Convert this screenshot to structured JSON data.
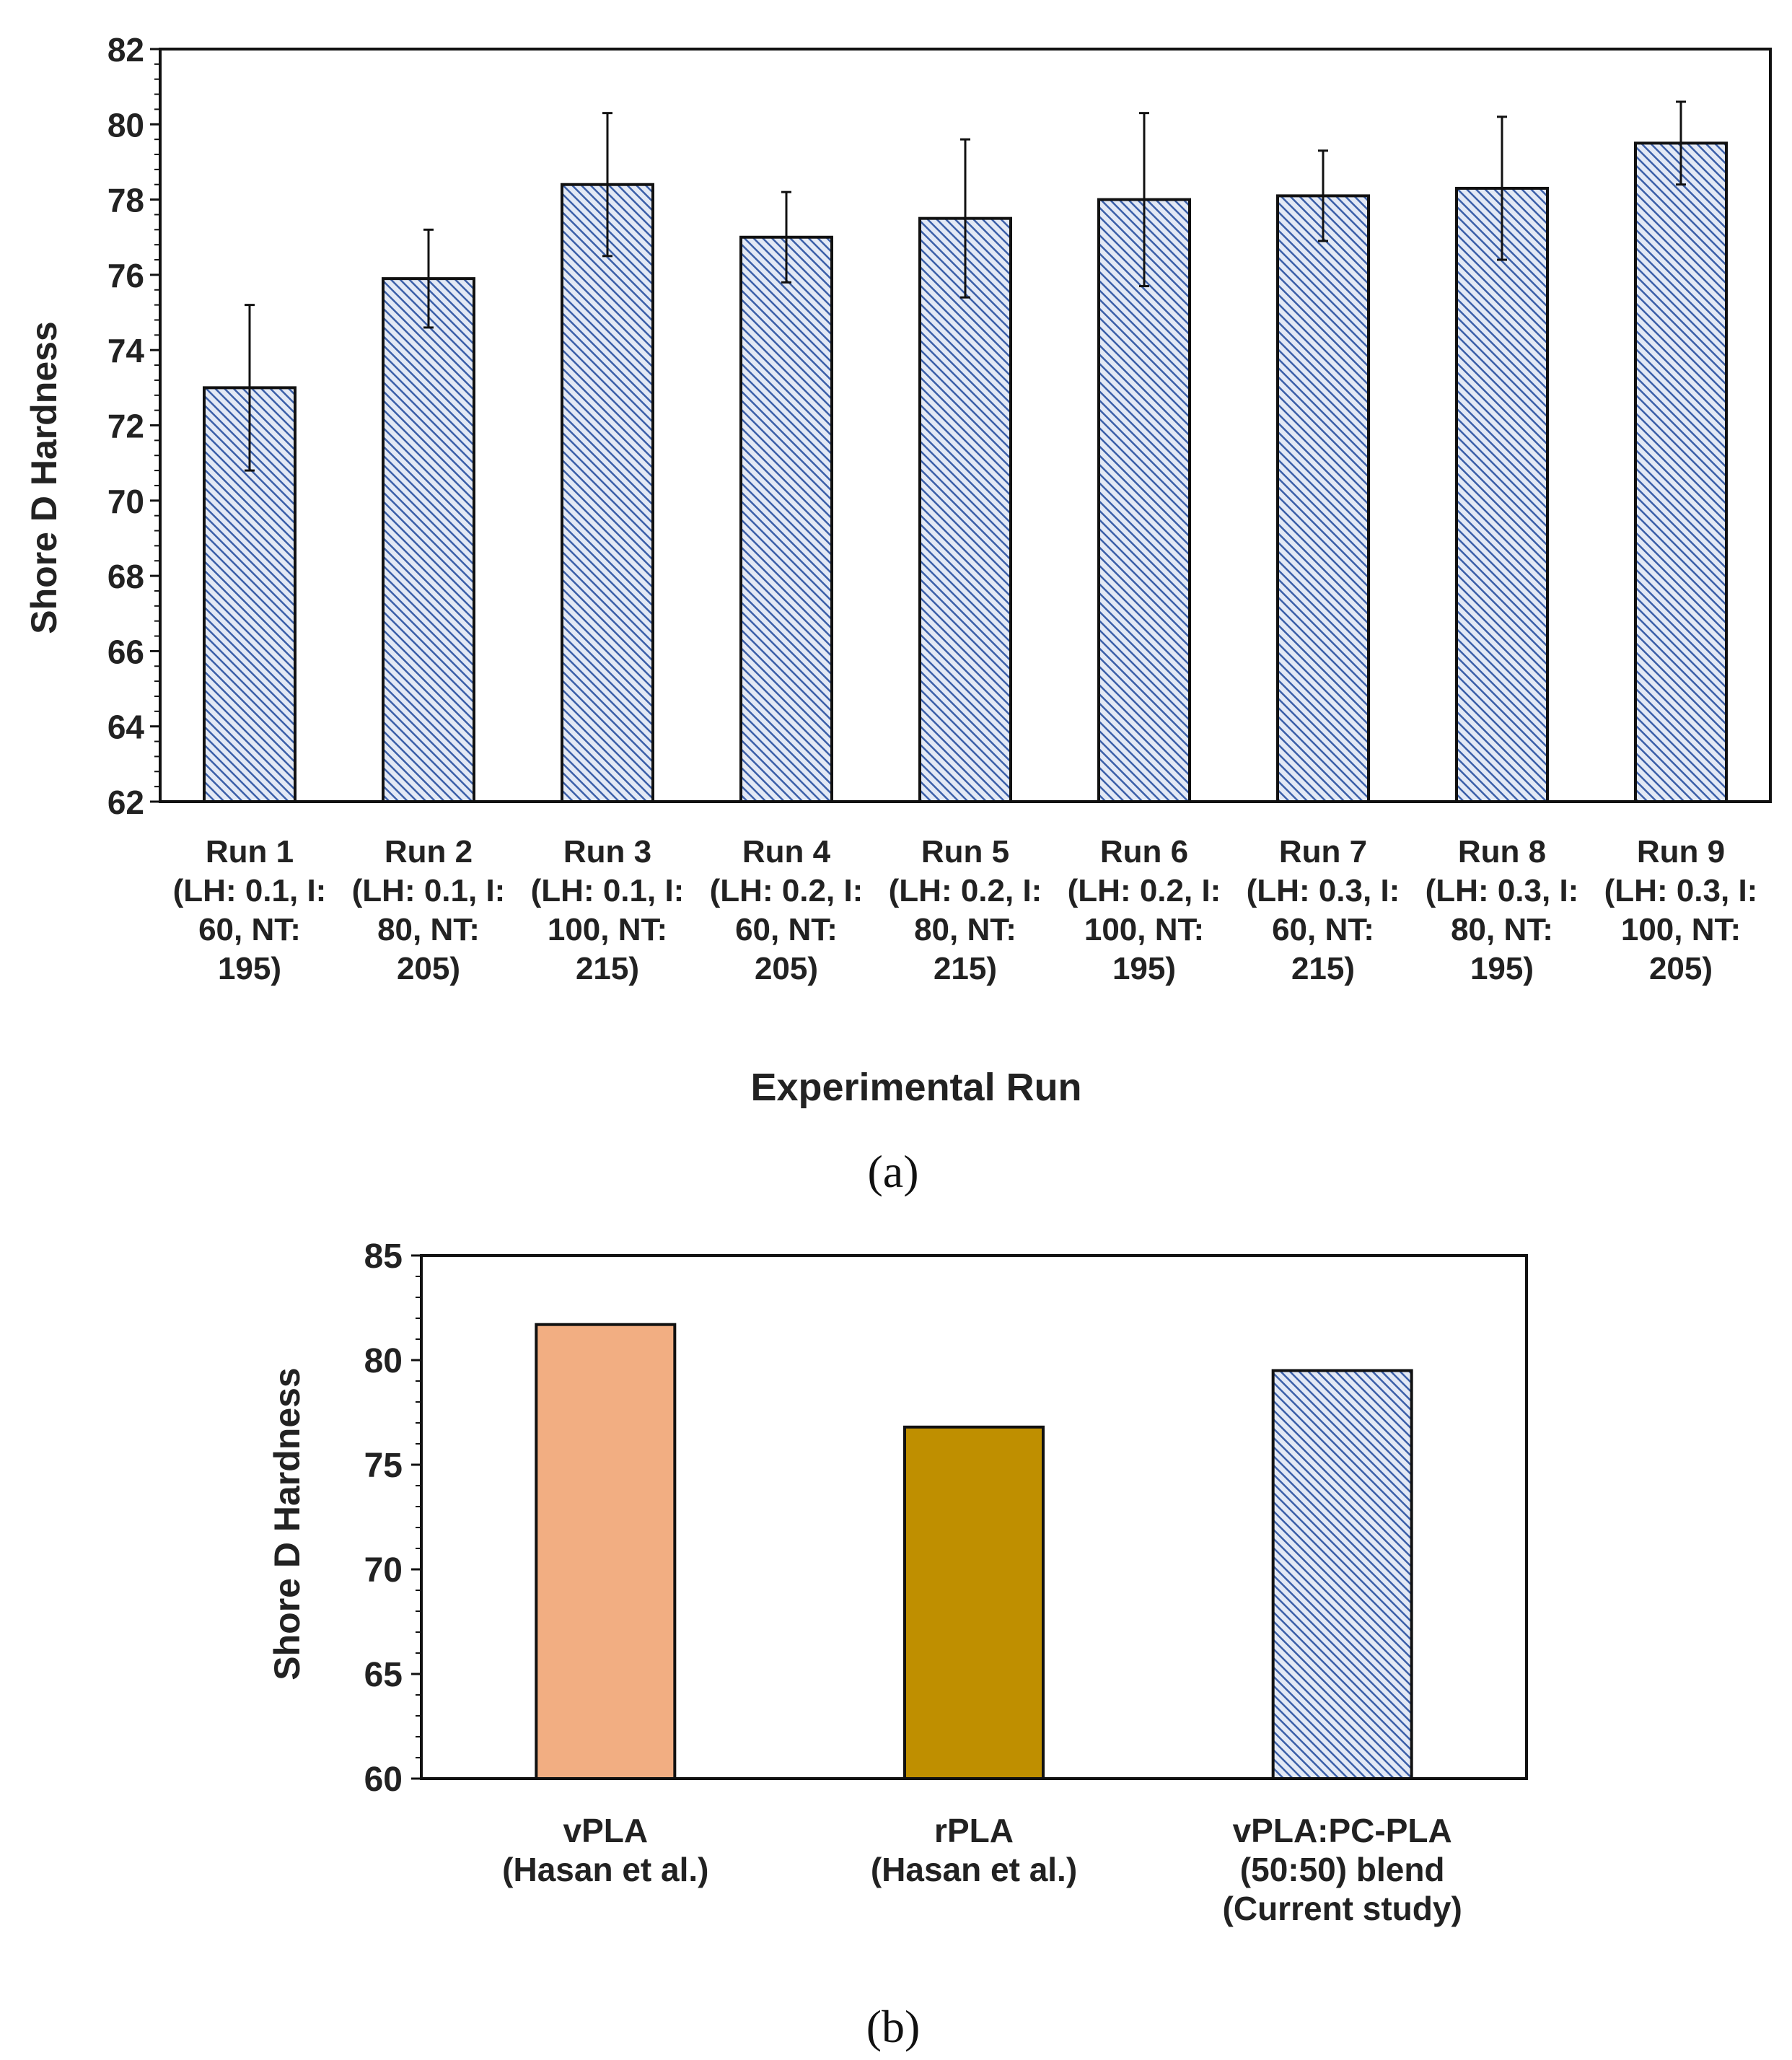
{
  "colors": {
    "hatch_blue": "#3b5fa8",
    "hatch_bg": "#e3e9f5",
    "vpla": "#f2ae82",
    "rpla": "#bf8f00",
    "ink": "#111111"
  },
  "chart_data": [
    {
      "type": "bar",
      "panel_label": "(a)",
      "title": "",
      "xlabel": "Experimental Run",
      "ylabel": "Shore D Hardness",
      "ylim": [
        62,
        82
      ],
      "yticks": [
        "62",
        "64",
        "66",
        "68",
        "70",
        "72",
        "74",
        "76",
        "78",
        "80",
        "82"
      ],
      "grid": false,
      "categories": [
        {
          "lines": [
            "Run 1",
            "(LH: 0.1, I:",
            "60, NT:",
            "195)"
          ]
        },
        {
          "lines": [
            "Run 2",
            "(LH: 0.1, I:",
            "80, NT:",
            "205)"
          ]
        },
        {
          "lines": [
            "Run 3",
            "(LH: 0.1, I:",
            "100, NT:",
            "215)"
          ]
        },
        {
          "lines": [
            "Run 4",
            "(LH: 0.2, I:",
            "60, NT:",
            "205)"
          ]
        },
        {
          "lines": [
            "Run 5",
            "(LH: 0.2, I:",
            "80, NT:",
            "215)"
          ]
        },
        {
          "lines": [
            "Run 6",
            "(LH: 0.2, I:",
            "100, NT:",
            "195)"
          ]
        },
        {
          "lines": [
            "Run 7",
            "(LH: 0.3, I:",
            "60, NT:",
            "215)"
          ]
        },
        {
          "lines": [
            "Run 8",
            "(LH: 0.3, I:",
            "80, NT:",
            "195)"
          ]
        },
        {
          "lines": [
            "Run 9",
            "(LH: 0.3, I:",
            "100, NT:",
            "205)"
          ]
        }
      ],
      "values": [
        73.0,
        75.9,
        78.4,
        77.0,
        77.5,
        78.0,
        78.1,
        78.3,
        79.5
      ],
      "errors": [
        2.2,
        1.3,
        1.9,
        1.2,
        2.1,
        2.3,
        1.2,
        1.9,
        1.1
      ]
    },
    {
      "type": "bar",
      "panel_label": "(b)",
      "title": "",
      "xlabel": "",
      "ylabel": "Shore D Hardness",
      "ylim": [
        60,
        85
      ],
      "yticks": [
        "60",
        "65",
        "70",
        "75",
        "80",
        "85"
      ],
      "grid": false,
      "categories": [
        {
          "lines": [
            "vPLA",
            "(Hasan et al.)"
          ],
          "fill": "vpla"
        },
        {
          "lines": [
            "rPLA",
            "(Hasan et al.)"
          ],
          "fill": "rpla"
        },
        {
          "lines": [
            "vPLA:PC-PLA",
            "(50:50) blend",
            "(Current study)"
          ],
          "fill": "hatch"
        }
      ],
      "values": [
        81.7,
        76.8,
        79.5
      ]
    }
  ]
}
